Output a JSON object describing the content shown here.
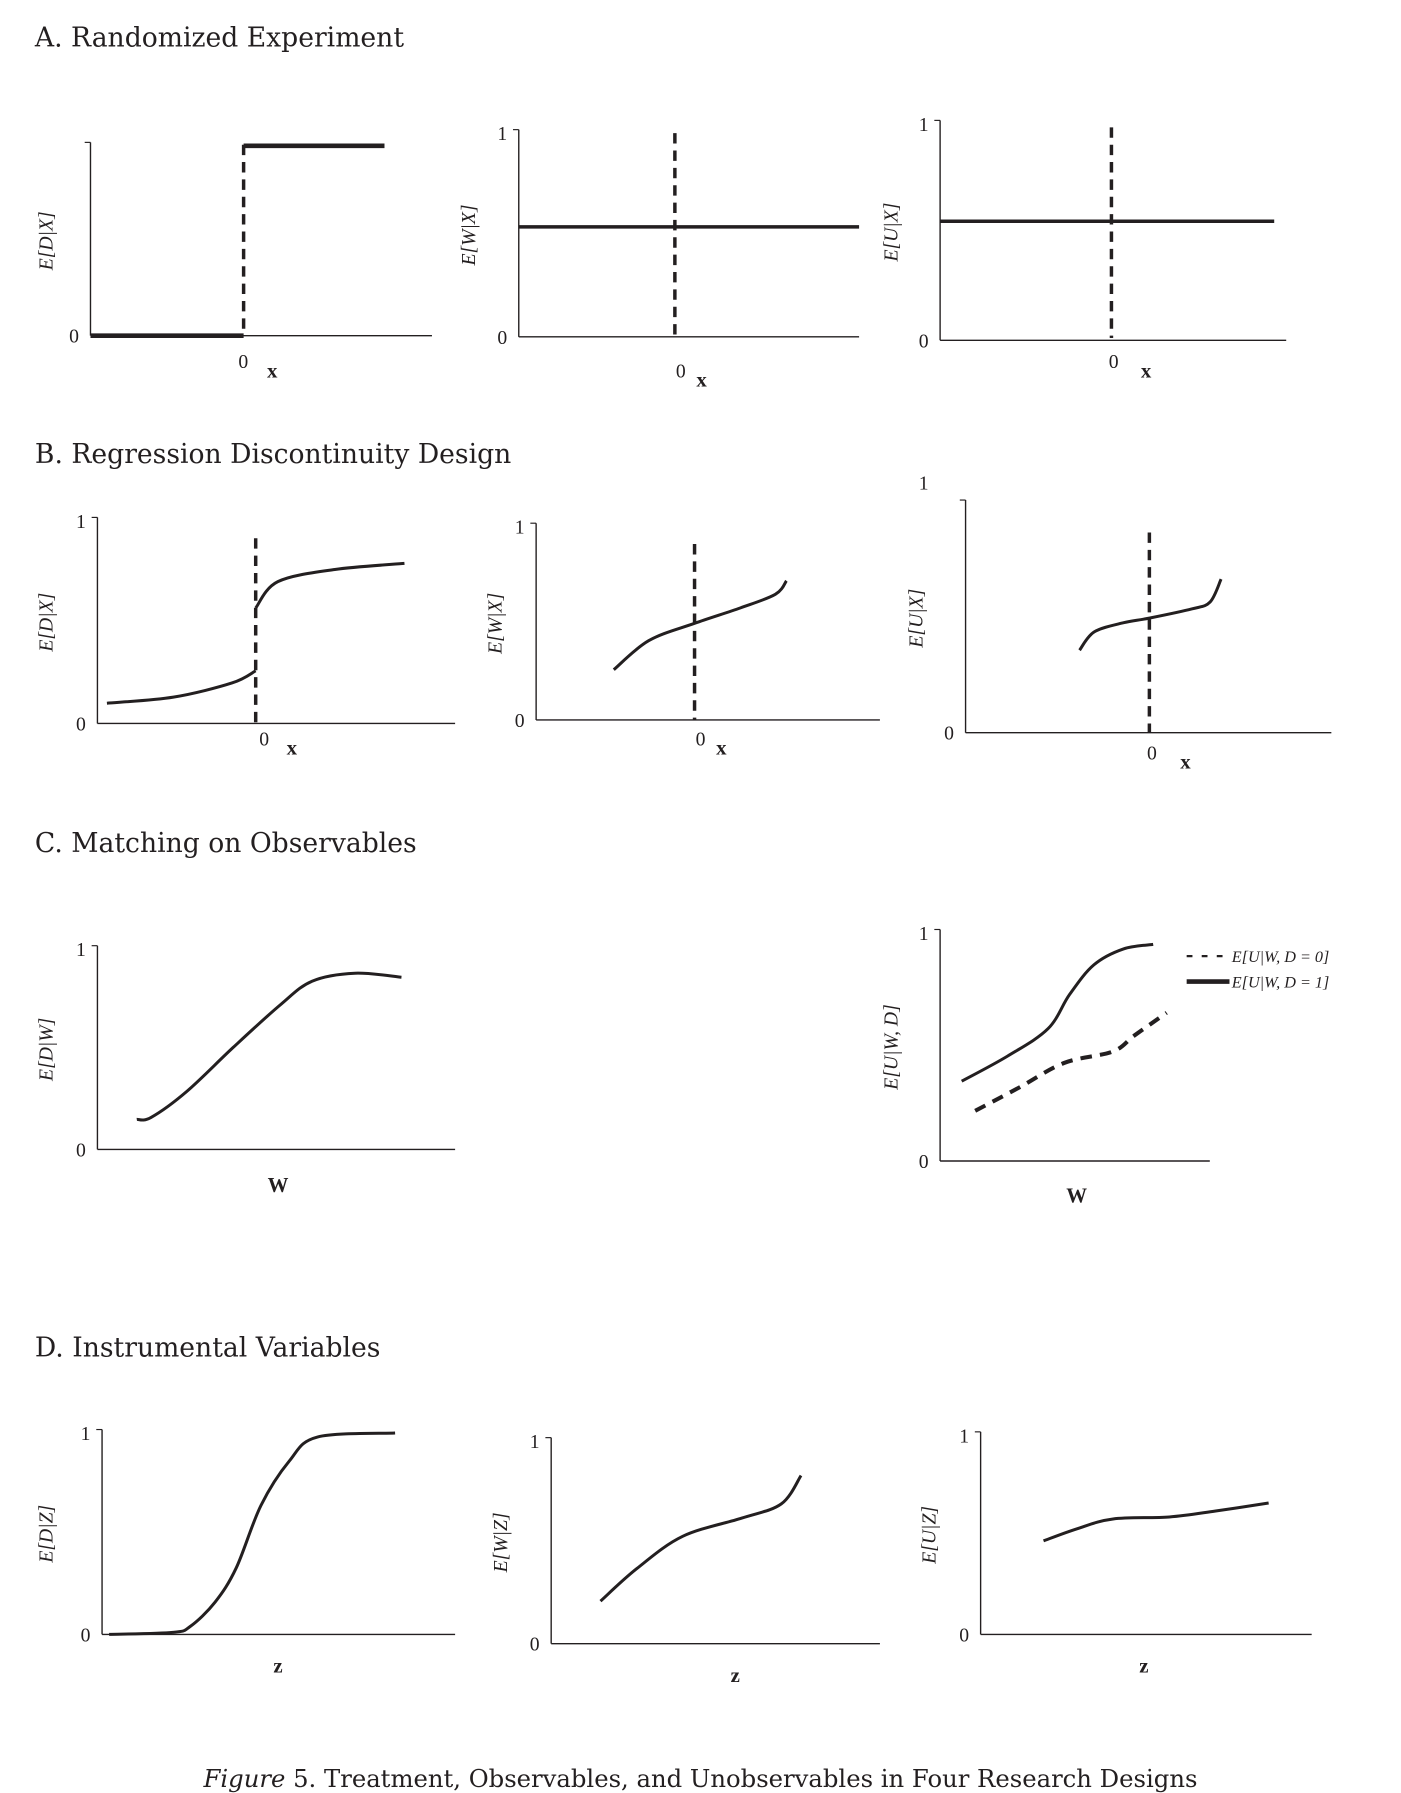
{
  "figure": {
    "caption_prefix": "Figure",
    "caption_text": " 5. Treatment, Observables, and Unobservables in Four Research Designs"
  },
  "sections": [
    {
      "title": "A. Randomized Experiment"
    },
    {
      "title": "B. Regression Discontinuity Design"
    },
    {
      "title": "C. Matching on Observables"
    },
    {
      "title": "D. Instrumental Variables"
    }
  ],
  "chart_data": [
    {
      "type": "line",
      "panel": "A1",
      "ylabel": "E[D|X]",
      "xlabel": "x",
      "x_tick": "0",
      "y_ticks": [
        "0"
      ],
      "ylim": [
        0,
        1
      ],
      "xlim": [
        -1,
        1.23
      ],
      "cutoff": 0,
      "series": [
        {
          "style": "solid",
          "points": [
            [
              -1,
              0
            ],
            [
              0,
              0
            ]
          ]
        },
        {
          "style": "solid",
          "points": [
            [
              0,
              1
            ],
            [
              0.92,
              1
            ]
          ]
        }
      ]
    },
    {
      "type": "line",
      "panel": "A2",
      "ylabel": "E[W|X]",
      "xlabel": "x",
      "x_tick": "0",
      "y_ticks": [
        "0",
        "1"
      ],
      "ylim": [
        0,
        1
      ],
      "xlim": [
        -1,
        1.18
      ],
      "cutoff": 0,
      "series": [
        {
          "style": "solid",
          "points": [
            [
              -1,
              0.54
            ],
            [
              1.18,
              0.54
            ]
          ]
        }
      ]
    },
    {
      "type": "line",
      "panel": "A3",
      "ylabel": "E[U|X]",
      "xlabel": "x",
      "x_tick": "0",
      "y_ticks": [
        "0",
        "1"
      ],
      "ylim": [
        0,
        1
      ],
      "xlim": [
        -1,
        1.02
      ],
      "cutoff": 0,
      "series": [
        {
          "style": "solid",
          "points": [
            [
              -1,
              0.55
            ],
            [
              0.95,
              0.55
            ]
          ]
        }
      ]
    },
    {
      "type": "line",
      "panel": "B1",
      "ylabel": "E[D|X]",
      "xlabel": "x",
      "x_tick": "0",
      "y_ticks": [
        "0",
        "1"
      ],
      "ylim": [
        0,
        1
      ],
      "xlim": [
        -1,
        1.26
      ],
      "cutoff": 0,
      "series": [
        {
          "style": "solid",
          "points": [
            [
              -0.94,
              0.1
            ],
            [
              -0.52,
              0.13
            ],
            [
              -0.15,
              0.2
            ],
            [
              0,
              0.26
            ]
          ]
        },
        {
          "style": "solid",
          "points": [
            [
              0,
              0.57
            ],
            [
              0.14,
              0.7
            ],
            [
              0.5,
              0.76
            ],
            [
              0.94,
              0.79
            ]
          ]
        }
      ]
    },
    {
      "type": "line",
      "panel": "B2",
      "ylabel": "E[W|X]",
      "xlabel": "x",
      "x_tick": "0",
      "y_ticks": [
        "0",
        "1"
      ],
      "ylim": [
        0,
        1
      ],
      "xlim": [
        -1,
        1.17
      ],
      "cutoff": 0,
      "series": [
        {
          "style": "solid",
          "points": [
            [
              -0.51,
              0.26
            ],
            [
              -0.29,
              0.41
            ],
            [
              0,
              0.5
            ],
            [
              0.29,
              0.58
            ],
            [
              0.51,
              0.65
            ],
            [
              0.58,
              0.72
            ]
          ]
        }
      ]
    },
    {
      "type": "line",
      "panel": "B3",
      "ylabel": "E[U|X]",
      "xlabel": "x",
      "x_tick": "0",
      "y_ticks": [
        "0",
        "1"
      ],
      "ylim": [
        0,
        1
      ],
      "xlim": [
        -1,
        0.99
      ],
      "cutoff": 0,
      "series": [
        {
          "style": "solid",
          "points": [
            [
              -0.38,
              0.36
            ],
            [
              -0.3,
              0.44
            ],
            [
              -0.14,
              0.48
            ],
            [
              0,
              0.5
            ],
            [
              0.23,
              0.54
            ],
            [
              0.33,
              0.57
            ],
            [
              0.39,
              0.67
            ]
          ]
        }
      ]
    },
    {
      "type": "line",
      "panel": "C1",
      "ylabel": "E[D|W]",
      "xlabel": "W",
      "y_ticks": [
        "0",
        "1"
      ],
      "ylim": [
        0,
        1
      ],
      "xlim": [
        0,
        1
      ],
      "series": [
        {
          "style": "solid",
          "points": [
            [
              0.11,
              0.15
            ],
            [
              0.15,
              0.16
            ],
            [
              0.25,
              0.29
            ],
            [
              0.38,
              0.51
            ],
            [
              0.51,
              0.72
            ],
            [
              0.6,
              0.84
            ],
            [
              0.72,
              0.88
            ],
            [
              0.85,
              0.86
            ]
          ]
        }
      ]
    },
    {
      "type": "line",
      "panel": "C2",
      "ylabel": "E[U|W, D]",
      "xlabel": "W",
      "y_ticks": [
        "0",
        "1"
      ],
      "ylim": [
        0,
        1
      ],
      "xlim": [
        0,
        1
      ],
      "legend": "top-right",
      "series": [
        {
          "name": "E[U|W, D = 0]",
          "style": "dashed",
          "points": [
            [
              0.13,
              0.22
            ],
            [
              0.29,
              0.32
            ],
            [
              0.46,
              0.43
            ],
            [
              0.64,
              0.48
            ],
            [
              0.72,
              0.55
            ],
            [
              0.84,
              0.65
            ]
          ]
        },
        {
          "name": "E[U|W, D = 1]",
          "style": "solid",
          "points": [
            [
              0.08,
              0.35
            ],
            [
              0.25,
              0.46
            ],
            [
              0.4,
              0.58
            ],
            [
              0.48,
              0.73
            ],
            [
              0.57,
              0.86
            ],
            [
              0.68,
              0.93
            ],
            [
              0.79,
              0.95
            ]
          ]
        }
      ]
    },
    {
      "type": "line",
      "panel": "D1",
      "ylabel": "E[D|Z]",
      "xlabel": "z",
      "y_ticks": [
        "0",
        "1"
      ],
      "ylim": [
        0,
        1
      ],
      "xlim": [
        0,
        1
      ],
      "series": [
        {
          "style": "solid",
          "points": [
            [
              0.02,
              0
            ],
            [
              0.2,
              0.01
            ],
            [
              0.25,
              0.04
            ],
            [
              0.32,
              0.16
            ],
            [
              0.38,
              0.33
            ],
            [
              0.45,
              0.64
            ],
            [
              0.53,
              0.86
            ],
            [
              0.61,
              0.98
            ],
            [
              0.83,
              1
            ]
          ]
        }
      ]
    },
    {
      "type": "line",
      "panel": "D2",
      "ylabel": "E[W|Z]",
      "xlabel": "z",
      "y_ticks": [
        "0",
        "1"
      ],
      "ylim": [
        0,
        1
      ],
      "xlim": [
        0,
        1
      ],
      "series": [
        {
          "style": "solid",
          "points": [
            [
              0.15,
              0.21
            ],
            [
              0.26,
              0.37
            ],
            [
              0.4,
              0.53
            ],
            [
              0.58,
              0.62
            ],
            [
              0.7,
              0.69
            ],
            [
              0.76,
              0.83
            ]
          ]
        }
      ]
    },
    {
      "type": "line",
      "panel": "D3",
      "ylabel": "E[U|Z]",
      "xlabel": "z",
      "y_ticks": [
        "0",
        "1"
      ],
      "ylim": [
        0,
        1
      ],
      "xlim": [
        0,
        1
      ],
      "series": [
        {
          "style": "solid",
          "points": [
            [
              0.19,
              0.47
            ],
            [
              0.29,
              0.53
            ],
            [
              0.4,
              0.58
            ],
            [
              0.57,
              0.59
            ],
            [
              0.71,
              0.62
            ],
            [
              0.87,
              0.66
            ]
          ]
        }
      ]
    }
  ]
}
